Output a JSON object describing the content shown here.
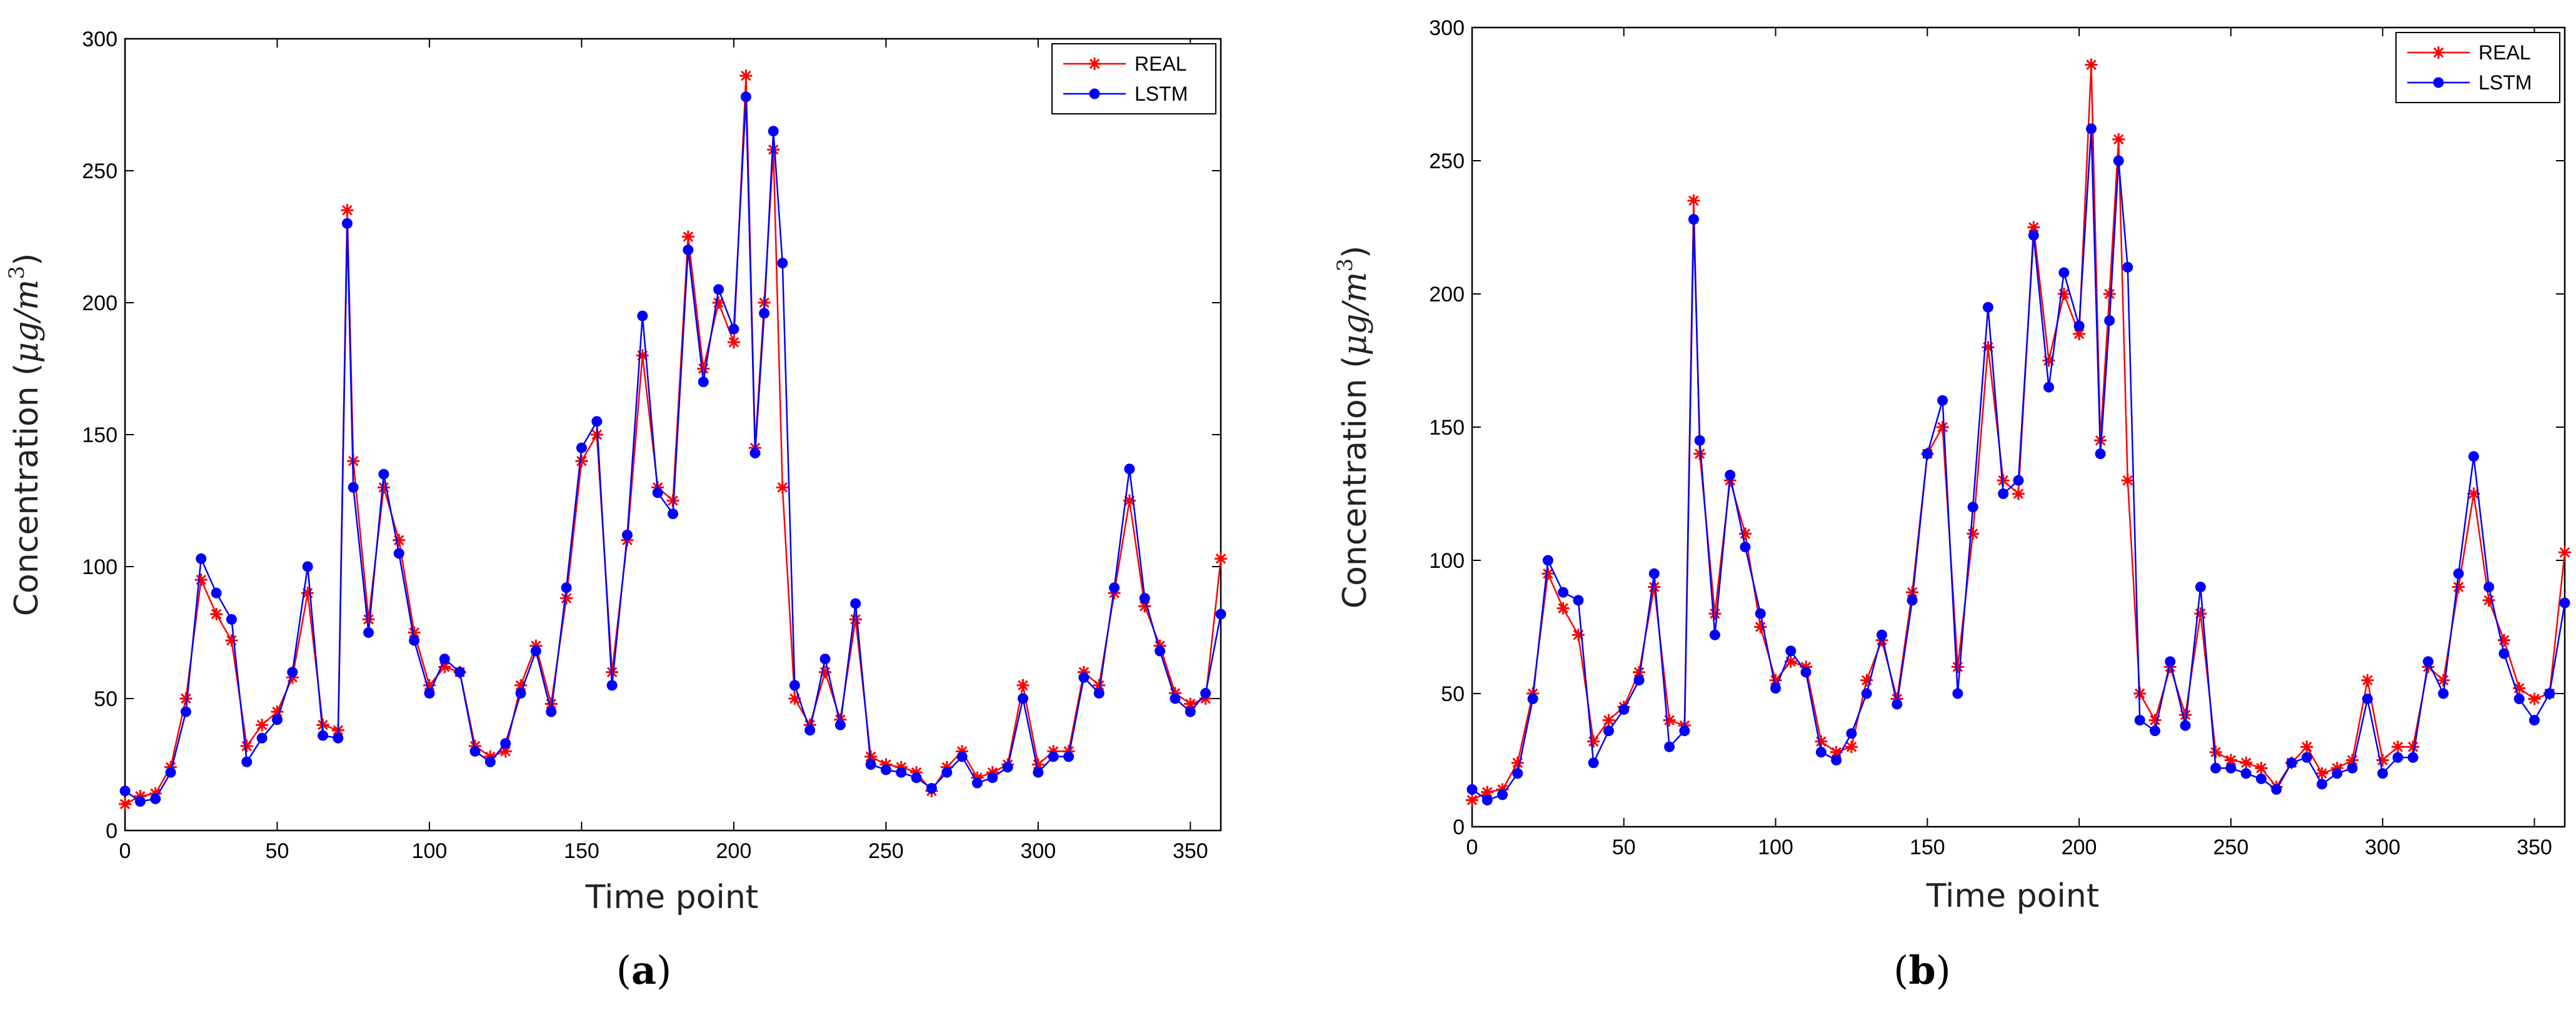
{
  "figure": {
    "captions": [
      "(a)",
      "(b)"
    ],
    "caption_parts": [
      {
        "open": "(",
        "letter": "a",
        "close": ")"
      },
      {
        "open": "(",
        "letter": "b",
        "close": ")"
      }
    ]
  },
  "colors": {
    "real": "#ff0000",
    "lstm": "#0000ff",
    "axis": "#000000"
  },
  "chart_data": [
    {
      "type": "line",
      "panel": "(a)",
      "title": "",
      "xlabel": "Time point",
      "ylabel_prefix": "Concentration (",
      "ylabel_unit_mu": "μ",
      "ylabel_unit_rest": "g/m",
      "ylabel_unit_exp": "3",
      "ylabel_suffix": ")",
      "xlim": [
        0,
        360
      ],
      "ylim": [
        0,
        300
      ],
      "xticks": [
        0,
        50,
        100,
        150,
        200,
        250,
        300,
        350
      ],
      "yticks": [
        0,
        50,
        100,
        150,
        200,
        250,
        300
      ],
      "legend_position": "top-right",
      "series": [
        {
          "name": "REAL",
          "marker": "star",
          "color": "#ff0000",
          "x": [
            0,
            5,
            10,
            15,
            20,
            25,
            30,
            35,
            40,
            45,
            50,
            55,
            60,
            65,
            70,
            73,
            75,
            80,
            85,
            90,
            95,
            100,
            105,
            110,
            115,
            120,
            125,
            130,
            135,
            140,
            145,
            150,
            155,
            160,
            165,
            170,
            175,
            180,
            185,
            190,
            195,
            200,
            204,
            207,
            210,
            213,
            216,
            220,
            225,
            230,
            235,
            240,
            245,
            250,
            255,
            260,
            265,
            270,
            275,
            280,
            285,
            290,
            295,
            300,
            305,
            310,
            315,
            320,
            325,
            330,
            335,
            340,
            345,
            350,
            355,
            360
          ],
          "values": [
            10,
            13,
            14,
            24,
            50,
            95,
            82,
            72,
            32,
            40,
            45,
            58,
            90,
            40,
            38,
            235,
            140,
            80,
            130,
            110,
            75,
            55,
            62,
            60,
            32,
            28,
            30,
            55,
            70,
            48,
            88,
            140,
            150,
            60,
            110,
            180,
            130,
            125,
            225,
            175,
            200,
            185,
            286,
            145,
            200,
            258,
            130,
            50,
            40,
            60,
            42,
            80,
            28,
            25,
            24,
            22,
            15,
            24,
            30,
            20,
            22,
            25,
            55,
            25,
            30,
            30,
            60,
            55,
            90,
            125,
            85,
            70,
            52,
            48,
            50,
            103
          ]
        },
        {
          "name": "LSTM",
          "marker": "dot",
          "color": "#0000ff",
          "x": [
            0,
            5,
            10,
            15,
            20,
            25,
            30,
            35,
            40,
            45,
            50,
            55,
            60,
            65,
            70,
            73,
            75,
            80,
            85,
            90,
            95,
            100,
            105,
            110,
            115,
            120,
            125,
            130,
            135,
            140,
            145,
            150,
            155,
            160,
            165,
            170,
            175,
            180,
            185,
            190,
            195,
            200,
            204,
            207,
            210,
            213,
            216,
            220,
            225,
            230,
            235,
            240,
            245,
            250,
            255,
            260,
            265,
            270,
            275,
            280,
            285,
            290,
            295,
            300,
            305,
            310,
            315,
            320,
            325,
            330,
            335,
            340,
            345,
            350,
            355,
            360
          ],
          "values": [
            15,
            11,
            12,
            22,
            45,
            103,
            90,
            80,
            26,
            35,
            42,
            60,
            100,
            36,
            35,
            230,
            130,
            75,
            135,
            105,
            72,
            52,
            65,
            60,
            30,
            26,
            33,
            52,
            68,
            45,
            92,
            145,
            155,
            55,
            112,
            195,
            128,
            120,
            220,
            170,
            205,
            190,
            278,
            143,
            196,
            265,
            215,
            55,
            38,
            65,
            40,
            86,
            25,
            23,
            22,
            20,
            16,
            22,
            28,
            18,
            20,
            24,
            50,
            22,
            28,
            28,
            58,
            52,
            92,
            137,
            88,
            68,
            50,
            45,
            52,
            82
          ]
        }
      ]
    },
    {
      "type": "line",
      "panel": "(b)",
      "title": "",
      "xlabel": "Time point",
      "ylabel_prefix": "Concentration (",
      "ylabel_unit_mu": "μ",
      "ylabel_unit_rest": "g/m",
      "ylabel_unit_exp": "3",
      "ylabel_suffix": ")",
      "xlim": [
        0,
        360
      ],
      "ylim": [
        0,
        300
      ],
      "xticks": [
        0,
        50,
        100,
        150,
        200,
        250,
        300,
        350
      ],
      "yticks": [
        0,
        50,
        100,
        150,
        200,
        250,
        300
      ],
      "legend_position": "top-right",
      "series": [
        {
          "name": "REAL",
          "marker": "star",
          "color": "#ff0000",
          "x": [
            0,
            5,
            10,
            15,
            20,
            25,
            30,
            35,
            40,
            45,
            50,
            55,
            60,
            65,
            70,
            73,
            75,
            80,
            85,
            90,
            95,
            100,
            105,
            110,
            115,
            120,
            125,
            130,
            135,
            140,
            145,
            150,
            155,
            160,
            165,
            170,
            175,
            180,
            185,
            190,
            195,
            200,
            204,
            207,
            210,
            213,
            216,
            220,
            225,
            230,
            235,
            240,
            245,
            250,
            255,
            260,
            265,
            270,
            275,
            280,
            285,
            290,
            295,
            300,
            305,
            310,
            315,
            320,
            325,
            330,
            335,
            340,
            345,
            350,
            355,
            360
          ],
          "values": [
            10,
            13,
            14,
            24,
            50,
            95,
            82,
            72,
            32,
            40,
            45,
            58,
            90,
            40,
            38,
            235,
            140,
            80,
            130,
            110,
            75,
            55,
            62,
            60,
            32,
            28,
            30,
            55,
            70,
            48,
            88,
            140,
            150,
            60,
            110,
            180,
            130,
            125,
            225,
            175,
            200,
            185,
            286,
            145,
            200,
            258,
            130,
            50,
            40,
            60,
            42,
            80,
            28,
            25,
            24,
            22,
            15,
            24,
            30,
            20,
            22,
            25,
            55,
            25,
            30,
            30,
            60,
            55,
            90,
            125,
            85,
            70,
            52,
            48,
            50,
            103
          ]
        },
        {
          "name": "LSTM",
          "marker": "dot",
          "color": "#0000ff",
          "x": [
            0,
            5,
            10,
            15,
            20,
            25,
            30,
            35,
            40,
            45,
            50,
            55,
            60,
            65,
            70,
            73,
            75,
            80,
            85,
            90,
            95,
            100,
            105,
            110,
            115,
            120,
            125,
            130,
            135,
            140,
            145,
            150,
            155,
            160,
            165,
            170,
            175,
            180,
            185,
            190,
            195,
            200,
            204,
            207,
            210,
            213,
            216,
            220,
            225,
            230,
            235,
            240,
            245,
            250,
            255,
            260,
            265,
            270,
            275,
            280,
            285,
            290,
            295,
            300,
            305,
            310,
            315,
            320,
            325,
            330,
            335,
            340,
            345,
            350,
            355,
            360
          ],
          "values": [
            14,
            10,
            12,
            20,
            48,
            100,
            88,
            85,
            24,
            36,
            44,
            55,
            95,
            30,
            36,
            228,
            145,
            72,
            132,
            105,
            80,
            52,
            66,
            58,
            28,
            25,
            35,
            50,
            72,
            46,
            85,
            140,
            160,
            50,
            120,
            195,
            125,
            130,
            222,
            165,
            208,
            188,
            262,
            140,
            190,
            250,
            210,
            40,
            36,
            62,
            38,
            90,
            22,
            22,
            20,
            18,
            14,
            24,
            26,
            16,
            20,
            22,
            48,
            20,
            26,
            26,
            62,
            50,
            95,
            139,
            90,
            65,
            48,
            40,
            50,
            84
          ]
        }
      ]
    }
  ]
}
